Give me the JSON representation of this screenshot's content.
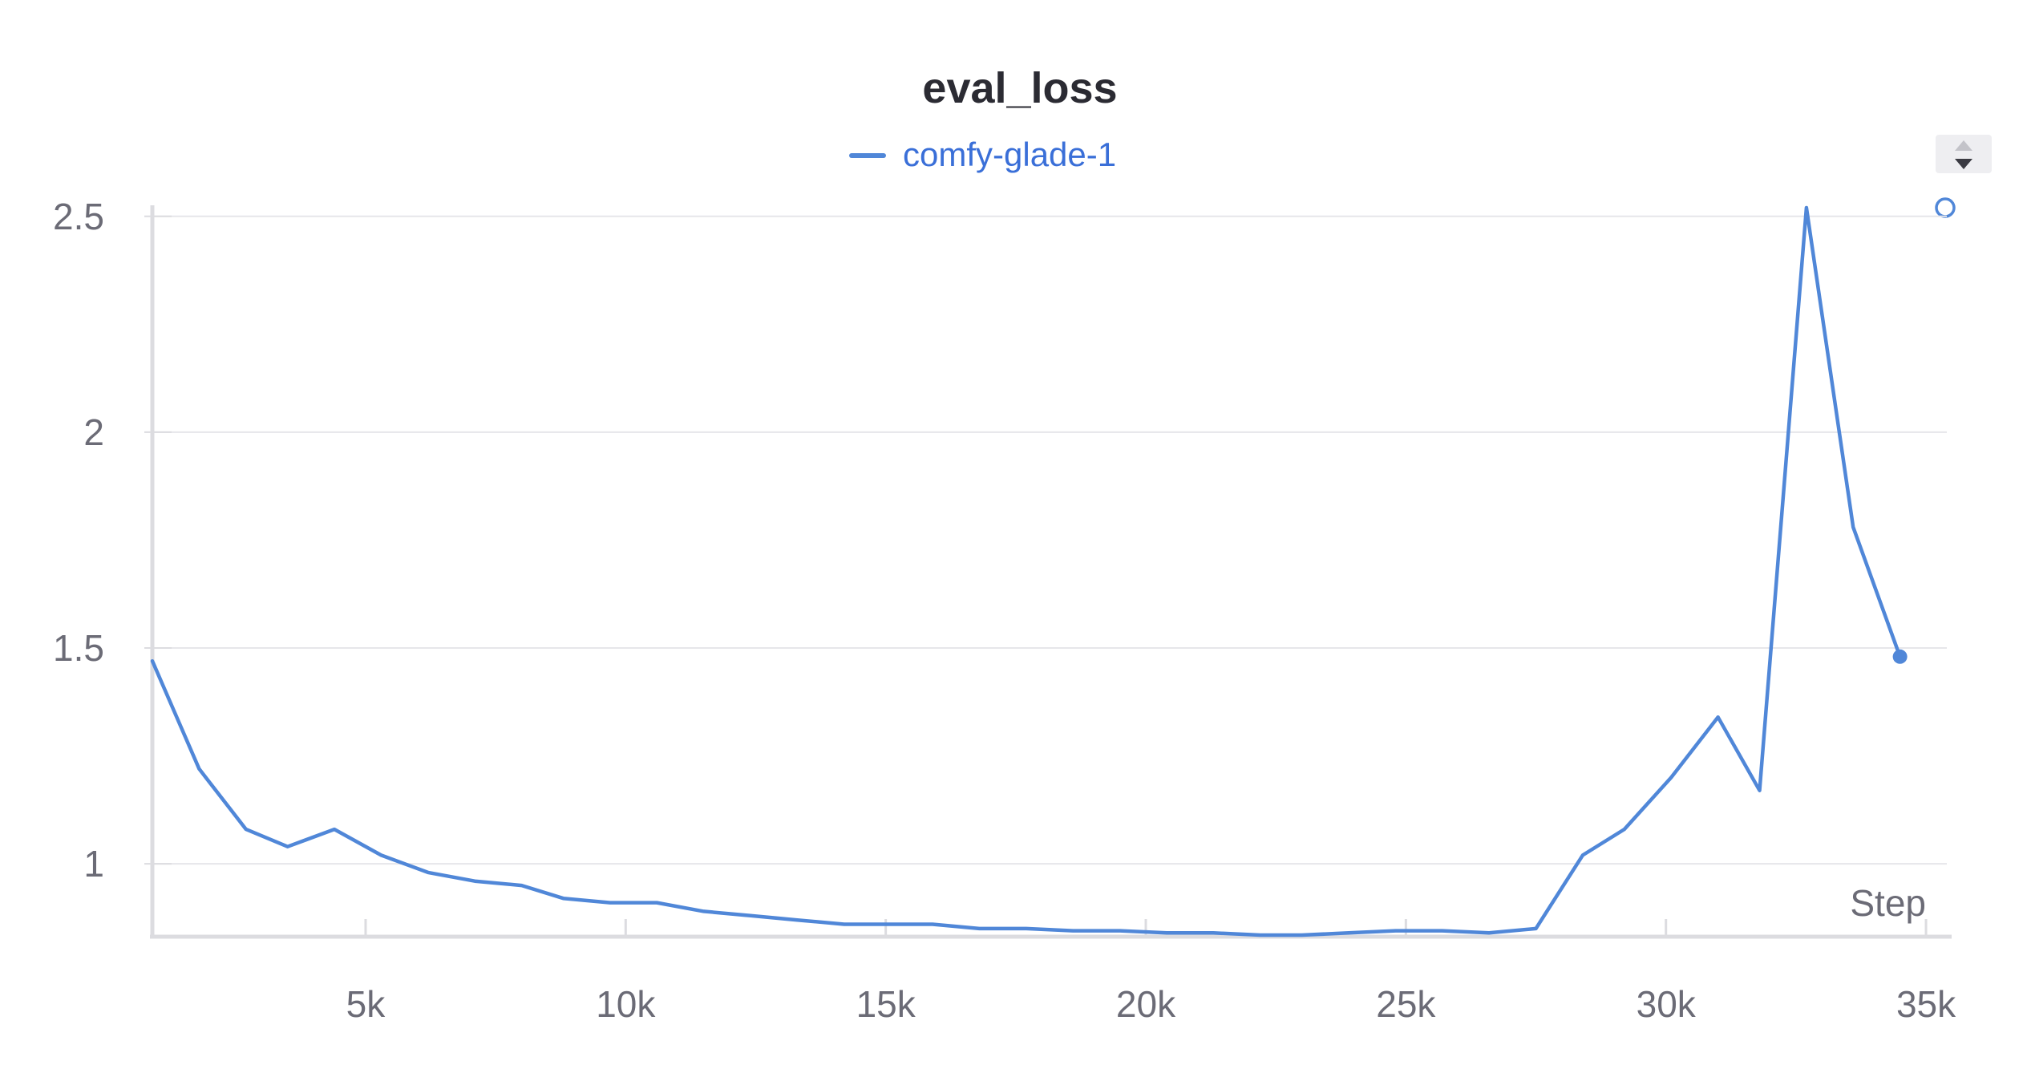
{
  "colors": {
    "series": "#5087d8",
    "grid": "#e6e6ea",
    "axis": "#dcdce0",
    "text": "#6b6b76",
    "title": "#2b2b33"
  },
  "chart_data": {
    "type": "line",
    "title": "eval_loss",
    "xlabel": "Step",
    "ylabel": "",
    "xlim": [
      900,
      35400
    ],
    "ylim": [
      0.835,
      2.52
    ],
    "x_ticks": [
      {
        "value": 5000,
        "label": "5k"
      },
      {
        "value": 10000,
        "label": "10k"
      },
      {
        "value": 15000,
        "label": "15k"
      },
      {
        "value": 20000,
        "label": "20k"
      },
      {
        "value": 25000,
        "label": "25k"
      },
      {
        "value": 30000,
        "label": "30k"
      },
      {
        "value": 35000,
        "label": "35k"
      }
    ],
    "y_ticks": [
      {
        "value": 1,
        "label": "1"
      },
      {
        "value": 1.5,
        "label": "1.5"
      },
      {
        "value": 2,
        "label": "2"
      },
      {
        "value": 2.5,
        "label": "2.5"
      }
    ],
    "grid": true,
    "legend_position": "top-center",
    "series": [
      {
        "name": "comfy-glade-1",
        "x": [
          900,
          1800,
          2700,
          3500,
          4400,
          5300,
          6200,
          7100,
          8000,
          8800,
          9700,
          10600,
          11500,
          12400,
          13300,
          14200,
          15000,
          15900,
          16800,
          17700,
          18600,
          19500,
          20400,
          21300,
          22200,
          23000,
          23900,
          24800,
          25700,
          26600,
          27500,
          28400,
          29200,
          30100,
          31000,
          31800,
          32700,
          33600,
          34500
        ],
        "y": [
          1.47,
          1.22,
          1.08,
          1.04,
          1.08,
          1.02,
          0.98,
          0.96,
          0.95,
          0.92,
          0.91,
          0.91,
          0.89,
          0.88,
          0.87,
          0.86,
          0.86,
          0.86,
          0.85,
          0.85,
          0.845,
          0.845,
          0.84,
          0.84,
          0.835,
          0.835,
          0.84,
          0.845,
          0.845,
          0.84,
          0.85,
          1.02,
          1.08,
          1.2,
          1.34,
          1.17,
          2.52,
          1.78,
          1.48
        ]
      }
    ]
  }
}
